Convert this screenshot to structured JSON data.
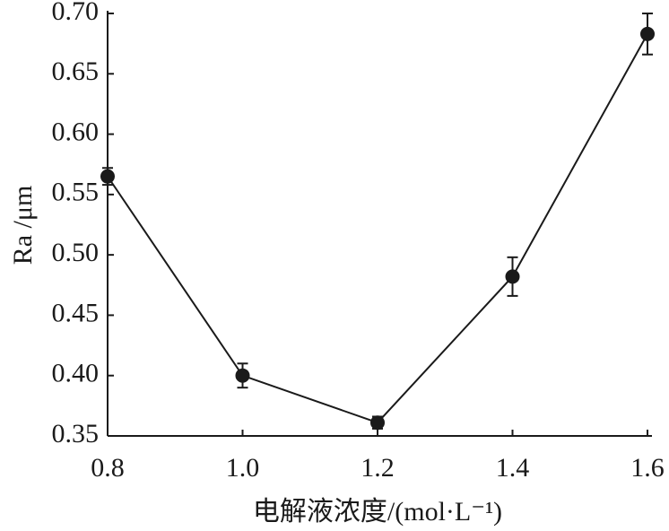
{
  "chart_data": {
    "type": "line",
    "x_label": "电解液浓度/(mol·L⁻¹)",
    "y_label": "Ra /μm",
    "x": [
      0.8,
      1.0,
      1.2,
      1.4,
      1.6
    ],
    "series": [
      {
        "values": [
          0.565,
          0.4,
          0.361,
          0.482,
          0.683
        ],
        "errors": [
          0.007,
          0.01,
          0.005,
          0.016,
          0.017
        ],
        "color": "#1a1a1a"
      }
    ],
    "xlim": [
      0.8,
      1.6
    ],
    "xticks": [
      0.8,
      {
        "value": 1.0,
        "label": "1.0"
      },
      1.2,
      1.4,
      1.6
    ],
    "ylim": [
      0.35,
      0.7
    ],
    "yticks": [
      {
        "value": 0.35,
        "label": "0.35"
      },
      {
        "value": 0.4,
        "label": "0.40"
      },
      0.45,
      {
        "value": 0.5,
        "label": "0.50"
      },
      0.55,
      {
        "value": 0.6,
        "label": "0.60"
      },
      0.65,
      {
        "value": 0.7,
        "label": "0.70"
      }
    ]
  }
}
